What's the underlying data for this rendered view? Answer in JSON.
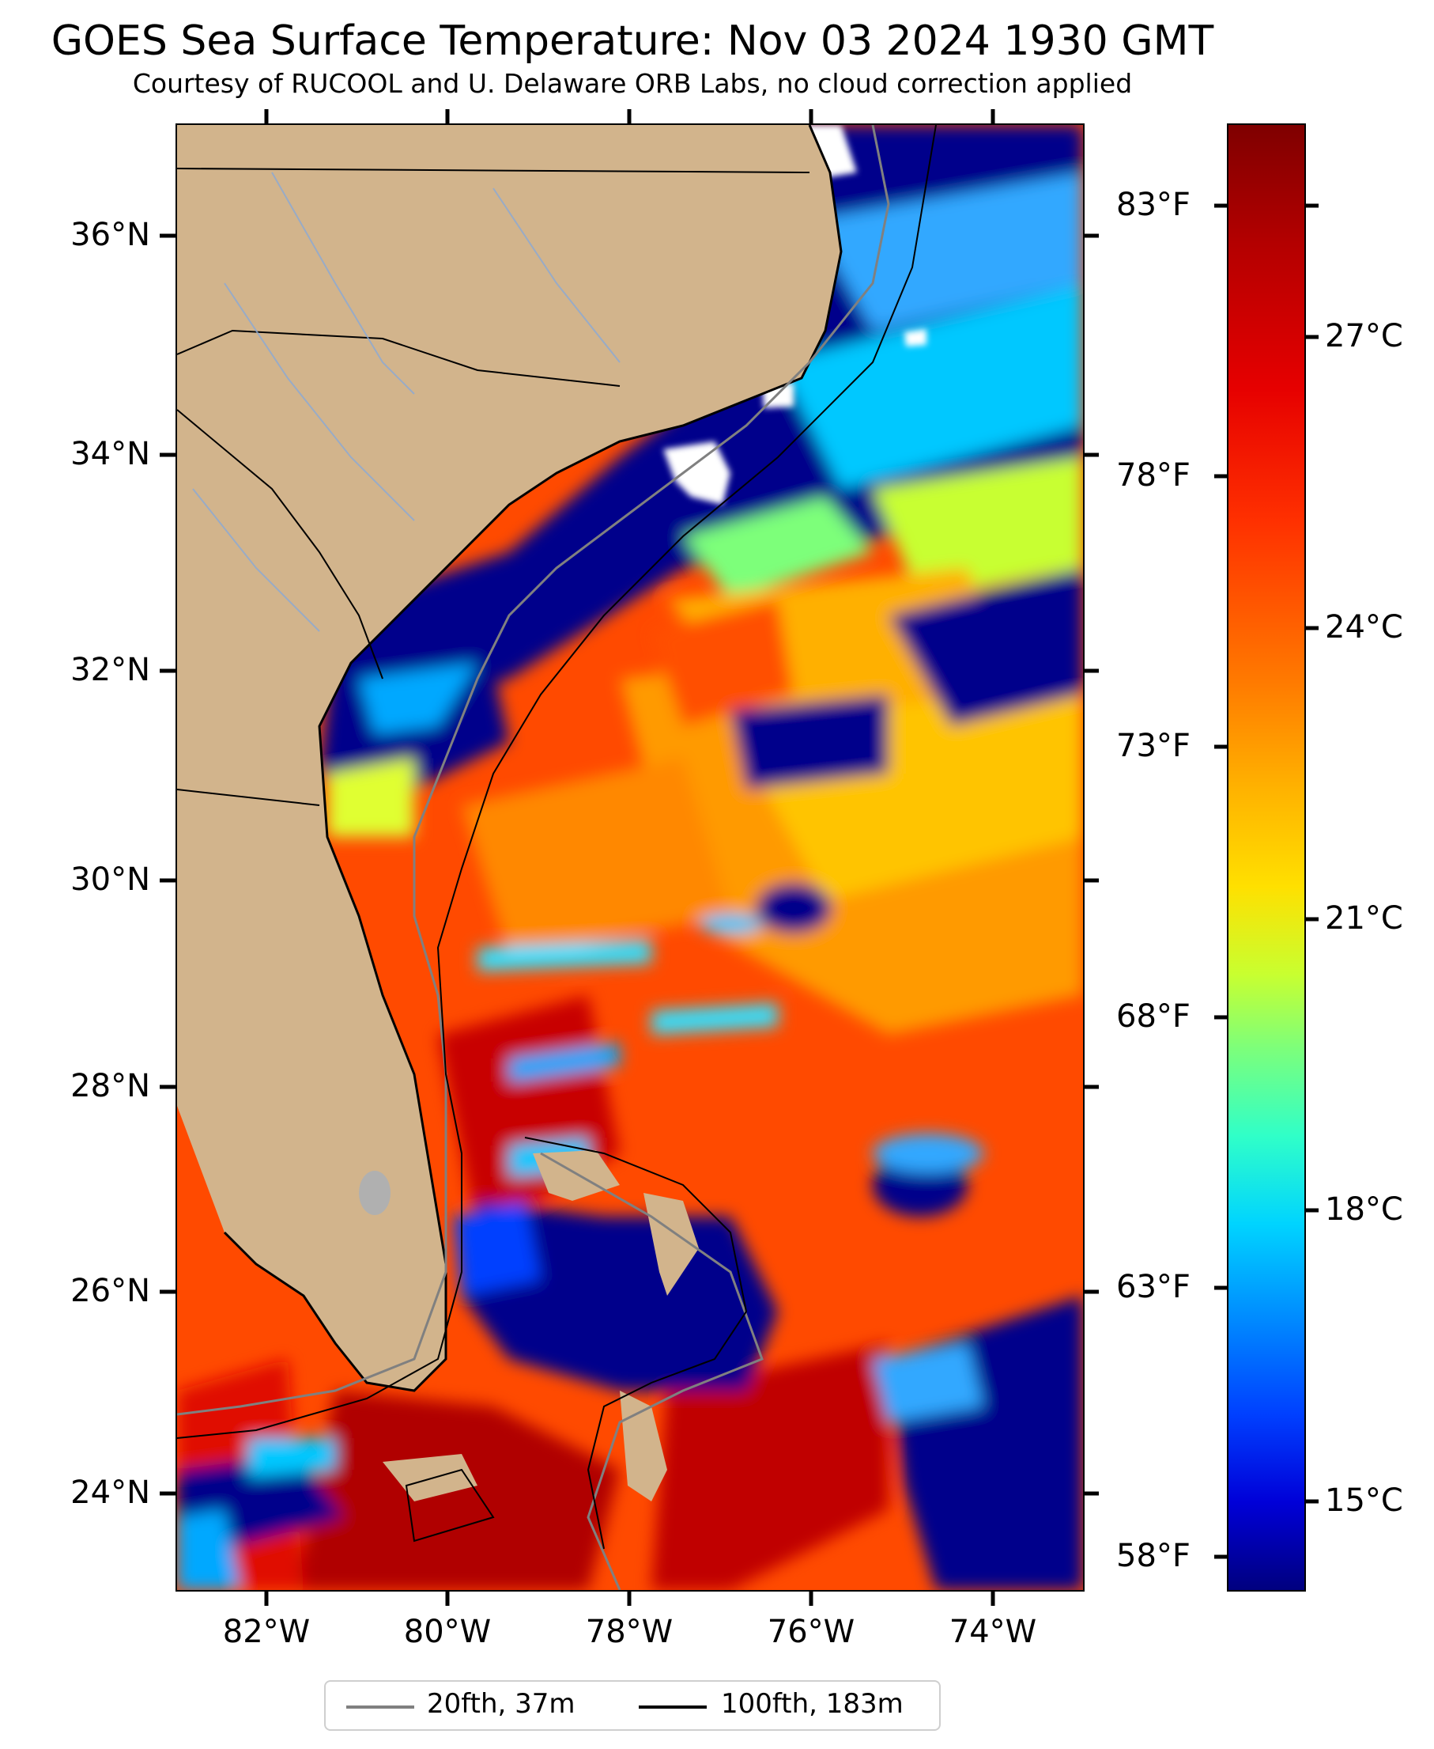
{
  "title": "GOES Sea Surface Temperature: Nov 03 2024 1930 GMT",
  "subtitle": "Courtesy of RUCOOL and U. Delaware ORB Labs, no cloud correction applied",
  "lat_labels": [
    "36°N",
    "34°N",
    "32°N",
    "30°N",
    "28°N",
    "26°N",
    "24°N"
  ],
  "lon_labels": [
    "82°W",
    "80°W",
    "78°W",
    "76°W",
    "74°W"
  ],
  "colorbar": {
    "fahrenheit_labels": [
      "83°F",
      "78°F",
      "73°F",
      "68°F",
      "63°F",
      "58°F"
    ],
    "celsius_labels": [
      "27°C",
      "24°C",
      "21°C",
      "18°C",
      "15°C"
    ]
  },
  "legend": [
    {
      "label": "20fth, 37m",
      "color": "#808080"
    },
    {
      "label": "100fth, 183m",
      "color": "#000000"
    }
  ],
  "colors": {
    "land": "#d2b48c",
    "cloud_mask": "#ffffff",
    "cold_water": "#00008b",
    "warm_water": "#ff3a00"
  }
}
